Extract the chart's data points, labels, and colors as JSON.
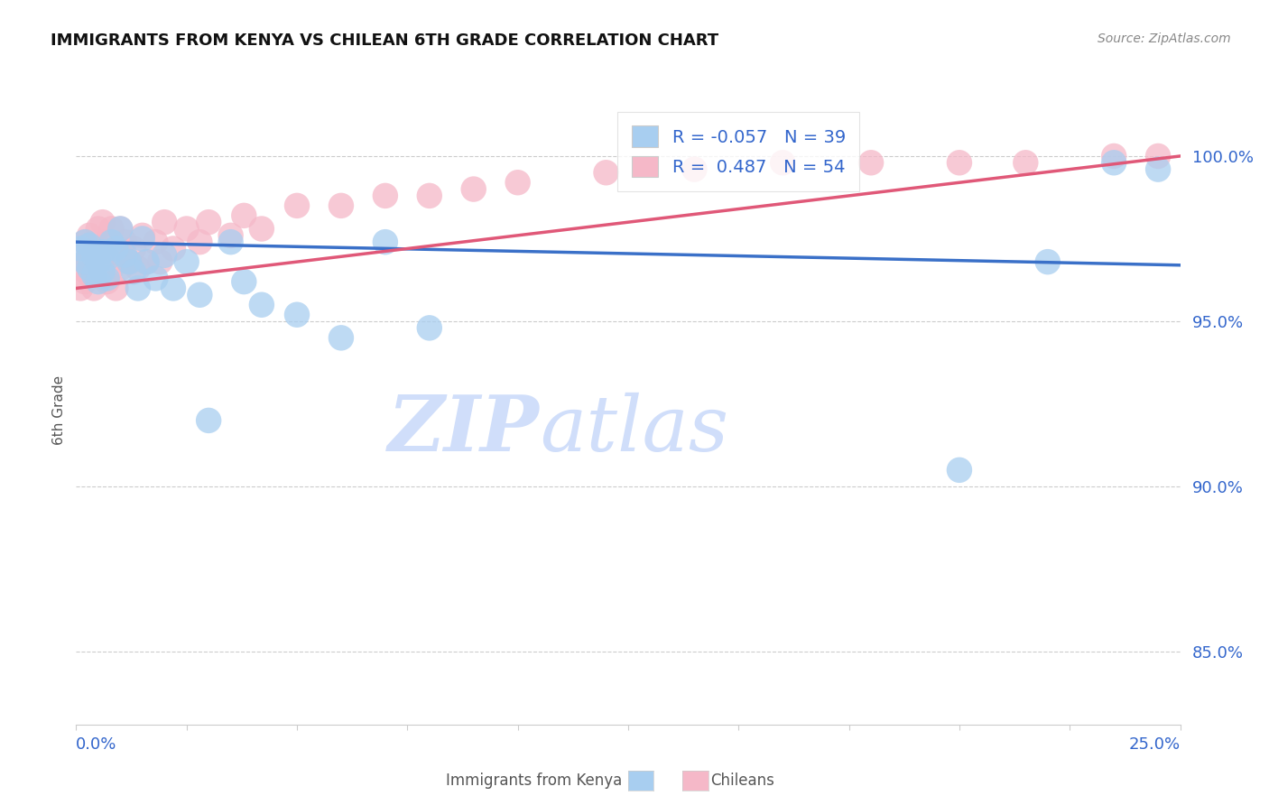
{
  "title": "IMMIGRANTS FROM KENYA VS CHILEAN 6TH GRADE CORRELATION CHART",
  "source": "Source: ZipAtlas.com",
  "ylabel": "6th Grade",
  "x_min": 0.0,
  "x_max": 0.25,
  "y_min": 0.828,
  "y_max": 1.018,
  "y_ticks": [
    0.85,
    0.9,
    0.95,
    1.0
  ],
  "y_tick_labels": [
    "85.0%",
    "90.0%",
    "95.0%",
    "100.0%"
  ],
  "blue_R": -0.057,
  "blue_N": 39,
  "pink_R": 0.487,
  "pink_N": 54,
  "blue_color": "#A8CEF0",
  "pink_color": "#F5B8C8",
  "blue_line_color": "#3A70C8",
  "pink_line_color": "#E05878",
  "blue_line_y0": 0.974,
  "blue_line_y1": 0.967,
  "pink_line_y0": 0.96,
  "pink_line_y1": 1.0,
  "legend_label_blue": "Immigrants from Kenya",
  "legend_label_pink": "Chileans",
  "background_color": "#ffffff",
  "watermark_color": "#D0DEFA",
  "grid_color": "#CCCCCC",
  "blue_scatter_x": [
    0.001,
    0.002,
    0.002,
    0.003,
    0.003,
    0.004,
    0.004,
    0.005,
    0.005,
    0.006,
    0.006,
    0.007,
    0.007,
    0.008,
    0.009,
    0.01,
    0.011,
    0.012,
    0.013,
    0.014,
    0.015,
    0.016,
    0.018,
    0.02,
    0.022,
    0.025,
    0.028,
    0.03,
    0.035,
    0.038,
    0.042,
    0.05,
    0.06,
    0.07,
    0.08,
    0.2,
    0.22,
    0.235,
    0.245
  ],
  "blue_scatter_y": [
    0.972,
    0.974,
    0.968,
    0.973,
    0.966,
    0.97,
    0.964,
    0.968,
    0.962,
    0.971,
    0.965,
    0.969,
    0.963,
    0.974,
    0.972,
    0.978,
    0.97,
    0.968,
    0.965,
    0.96,
    0.975,
    0.968,
    0.963,
    0.97,
    0.96,
    0.968,
    0.958,
    0.92,
    0.974,
    0.962,
    0.955,
    0.952,
    0.945,
    0.974,
    0.948,
    0.905,
    0.968,
    0.998,
    0.996
  ],
  "pink_scatter_x": [
    0.001,
    0.001,
    0.002,
    0.002,
    0.002,
    0.003,
    0.003,
    0.003,
    0.004,
    0.004,
    0.004,
    0.005,
    0.005,
    0.005,
    0.006,
    0.006,
    0.007,
    0.007,
    0.008,
    0.008,
    0.009,
    0.009,
    0.01,
    0.01,
    0.011,
    0.012,
    0.013,
    0.014,
    0.015,
    0.016,
    0.018,
    0.019,
    0.02,
    0.022,
    0.025,
    0.028,
    0.03,
    0.035,
    0.038,
    0.042,
    0.05,
    0.06,
    0.07,
    0.08,
    0.09,
    0.1,
    0.12,
    0.14,
    0.16,
    0.18,
    0.2,
    0.215,
    0.235,
    0.245
  ],
  "pink_scatter_y": [
    0.966,
    0.96,
    0.974,
    0.968,
    0.962,
    0.976,
    0.97,
    0.964,
    0.972,
    0.966,
    0.96,
    0.978,
    0.972,
    0.966,
    0.98,
    0.968,
    0.974,
    0.962,
    0.978,
    0.966,
    0.972,
    0.96,
    0.978,
    0.966,
    0.974,
    0.968,
    0.972,
    0.966,
    0.976,
    0.968,
    0.974,
    0.968,
    0.98,
    0.972,
    0.978,
    0.974,
    0.98,
    0.976,
    0.982,
    0.978,
    0.985,
    0.985,
    0.988,
    0.988,
    0.99,
    0.992,
    0.995,
    0.996,
    0.998,
    0.998,
    0.998,
    0.998,
    1.0,
    1.0
  ]
}
